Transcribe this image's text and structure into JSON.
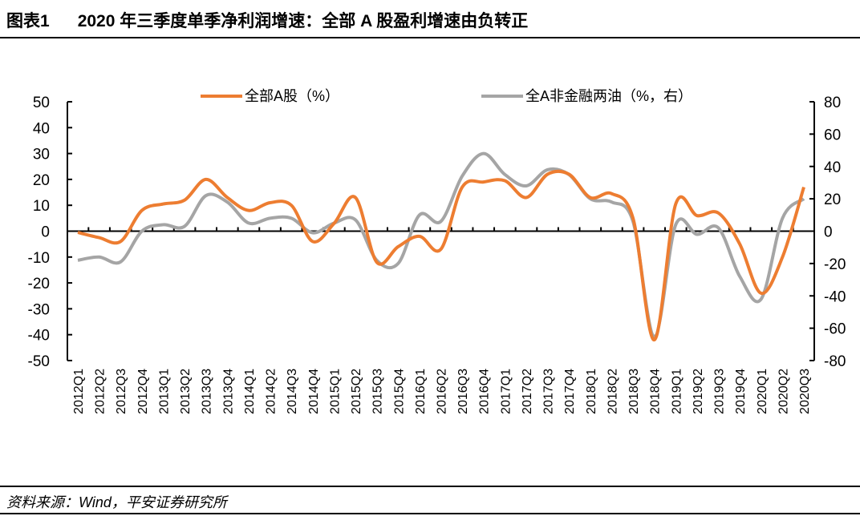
{
  "header": {
    "figure_no": "图表1",
    "title": "2020 年三季度单季净利润增速：全部 A 股盈利增速由负转正"
  },
  "footer": {
    "source": "资料来源：Wind，平安证券研究所"
  },
  "chart_data": {
    "type": "line",
    "categories": [
      "2012Q1",
      "2012Q2",
      "2012Q3",
      "2012Q4",
      "2013Q1",
      "2013Q2",
      "2013Q3",
      "2013Q4",
      "2014Q1",
      "2014Q2",
      "2014Q3",
      "2014Q4",
      "2015Q1",
      "2015Q2",
      "2015Q3",
      "2015Q4",
      "2016Q1",
      "2016Q2",
      "2016Q3",
      "2016Q4",
      "2017Q1",
      "2017Q2",
      "2017Q3",
      "2017Q4",
      "2018Q1",
      "2018Q2",
      "2018Q3",
      "2018Q4",
      "2019Q1",
      "2019Q2",
      "2019Q3",
      "2019Q4",
      "2020Q1",
      "2020Q2",
      "2020Q3"
    ],
    "series": [
      {
        "name": "全部A股（%）",
        "axis": "left",
        "color": "#ED7D31",
        "values": [
          -0.5,
          -2.5,
          -4,
          8,
          10.5,
          12,
          20,
          13,
          8,
          11,
          10,
          -4,
          3,
          13,
          -12,
          -6,
          -2,
          -7,
          17,
          19,
          19.5,
          13,
          22,
          22,
          13,
          14.5,
          5,
          -42,
          10.5,
          6,
          7,
          -5,
          -24,
          -10,
          17
        ]
      },
      {
        "name": "全A非金融两油（%，右）",
        "axis": "right",
        "color": "#A5A5A5",
        "values": [
          -18,
          -16,
          -19,
          0,
          4,
          3,
          22,
          18,
          5,
          8,
          8,
          -1,
          5,
          7,
          -18,
          -20,
          10,
          6,
          34,
          48,
          35,
          28,
          38,
          35,
          20,
          18,
          6,
          -65,
          4,
          -2,
          2,
          -28,
          -42,
          8,
          20
        ]
      }
    ],
    "y_left": {
      "range": [
        -50,
        50
      ],
      "ticks": [
        50,
        40,
        30,
        20,
        10,
        0,
        -10,
        -20,
        -30,
        -40,
        -50
      ]
    },
    "y_right": {
      "range": [
        -80,
        80
      ],
      "ticks": [
        80,
        60,
        40,
        20,
        0,
        -20,
        -40,
        -60,
        -80
      ]
    },
    "grid": false,
    "legend": "top"
  }
}
